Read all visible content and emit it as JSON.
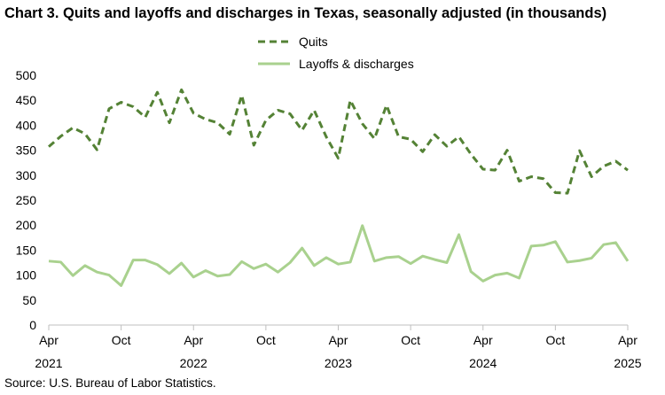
{
  "chart_data": {
    "type": "line",
    "title": "Chart 3. Quits and layoffs and discharges in Texas, seasonally adjusted (in thousands)",
    "source": "Source: U.S. Bureau of Labor Statistics.",
    "xlabel": "",
    "ylabel": "",
    "ylim": [
      0,
      500
    ],
    "yticks": [
      0,
      50,
      100,
      150,
      200,
      250,
      300,
      350,
      400,
      450,
      500
    ],
    "grid": false,
    "legend_position": "top-center",
    "x_ticks": [
      {
        "index": 0,
        "month": "Apr",
        "year": "2021"
      },
      {
        "index": 6,
        "month": "Oct",
        "year": ""
      },
      {
        "index": 12,
        "month": "Apr",
        "year": "2022"
      },
      {
        "index": 18,
        "month": "Oct",
        "year": ""
      },
      {
        "index": 24,
        "month": "Apr",
        "year": "2023"
      },
      {
        "index": 30,
        "month": "Oct",
        "year": ""
      },
      {
        "index": 36,
        "month": "Apr",
        "year": "2024"
      },
      {
        "index": 42,
        "month": "Oct",
        "year": ""
      },
      {
        "index": 48,
        "month": "Apr",
        "year": "2025"
      }
    ],
    "x": [
      "2021-04",
      "2021-05",
      "2021-06",
      "2021-07",
      "2021-08",
      "2021-09",
      "2021-10",
      "2021-11",
      "2021-12",
      "2022-01",
      "2022-02",
      "2022-03",
      "2022-04",
      "2022-05",
      "2022-06",
      "2022-07",
      "2022-08",
      "2022-09",
      "2022-10",
      "2022-11",
      "2022-12",
      "2023-01",
      "2023-02",
      "2023-03",
      "2023-04",
      "2023-05",
      "2023-06",
      "2023-07",
      "2023-08",
      "2023-09",
      "2023-10",
      "2023-11",
      "2023-12",
      "2024-01",
      "2024-02",
      "2024-03",
      "2024-04",
      "2024-05",
      "2024-06",
      "2024-07",
      "2024-08",
      "2024-09",
      "2024-10",
      "2024-11",
      "2024-12",
      "2025-01",
      "2025-02",
      "2025-03",
      "2025-04"
    ],
    "series": [
      {
        "name": "Quits",
        "color": "#548235",
        "style": "dashed",
        "values": [
          357,
          378,
          395,
          383,
          351,
          433,
          446,
          437,
          416,
          466,
          405,
          471,
          424,
          412,
          405,
          382,
          460,
          360,
          410,
          430,
          423,
          390,
          430,
          377,
          334,
          450,
          403,
          373,
          440,
          377,
          372,
          347,
          381,
          358,
          377,
          342,
          312,
          310,
          350,
          288,
          297,
          293,
          265,
          264,
          349,
          297,
          318,
          328,
          310
        ]
      },
      {
        "name": "Layoffs & discharges",
        "color": "#a9d18e",
        "style": "solid",
        "values": [
          128,
          126,
          99,
          119,
          106,
          100,
          79,
          130,
          130,
          121,
          103,
          124,
          96,
          109,
          98,
          101,
          127,
          113,
          122,
          106,
          125,
          154,
          119,
          135,
          122,
          126,
          199,
          128,
          135,
          137,
          123,
          138,
          131,
          125,
          181,
          107,
          88,
          100,
          104,
          94,
          158,
          160,
          167,
          126,
          129,
          134,
          161,
          165,
          128
        ]
      }
    ]
  }
}
